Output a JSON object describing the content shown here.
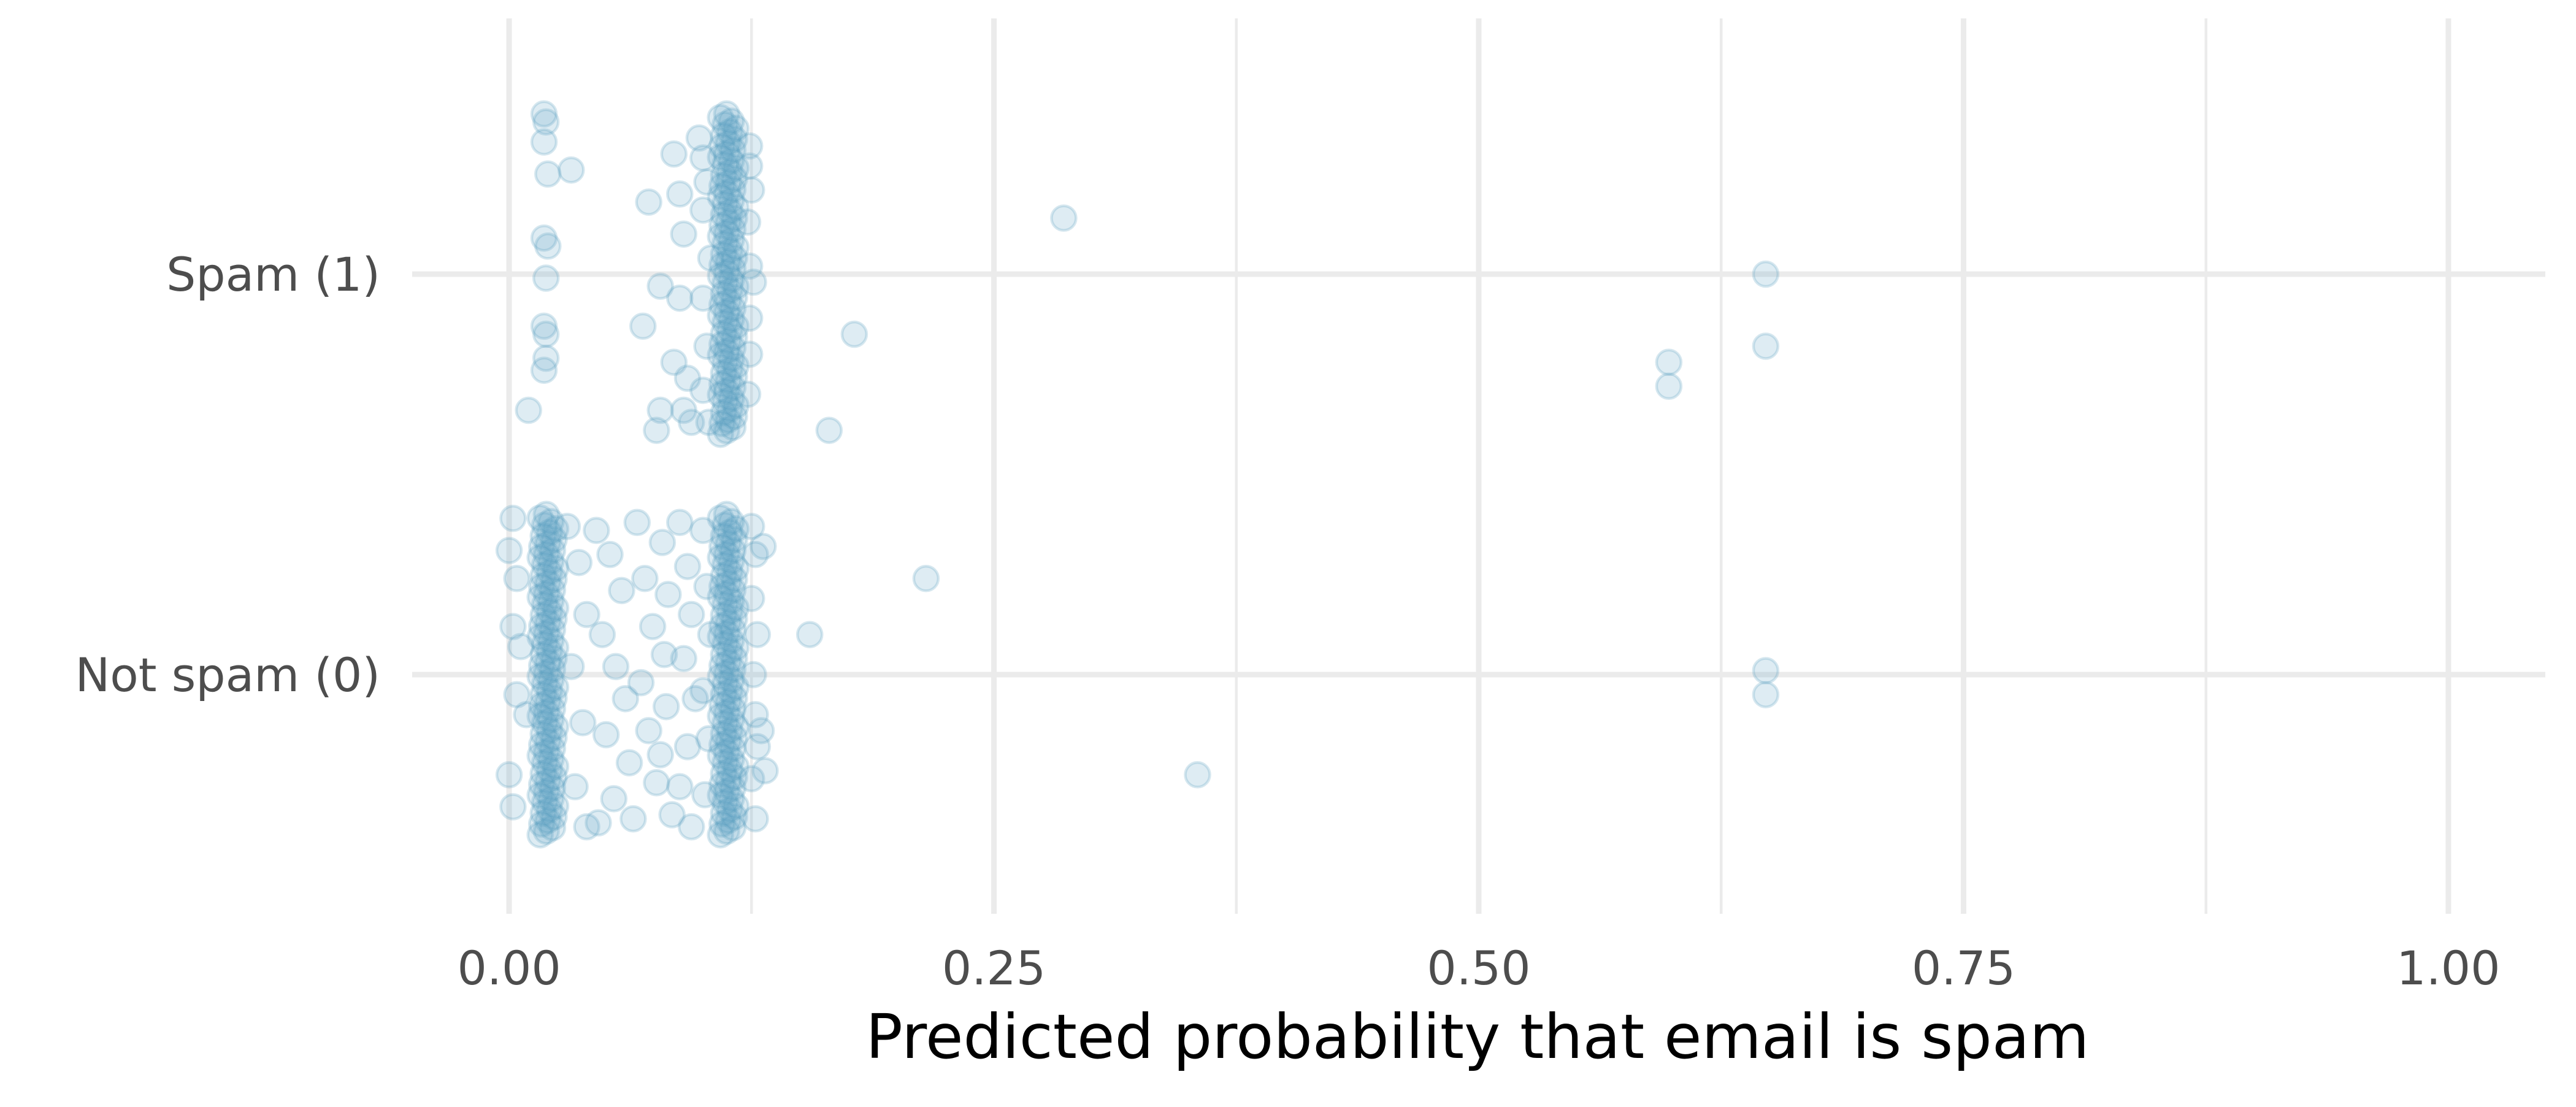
{
  "chart_data": {
    "type": "scatter",
    "title": "",
    "xlabel": "Predicted probability that email is spam",
    "ylabel": "",
    "xlim": [
      -0.05,
      1.05
    ],
    "xticks": [
      0.0,
      0.25,
      0.5,
      0.75,
      1.0
    ],
    "xtick_labels": [
      "0.00",
      "0.25",
      "0.50",
      "0.75",
      "1.00"
    ],
    "y_categories": [
      "Not spam (0)",
      "Spam (1)"
    ],
    "y_category_values": [
      0,
      1
    ],
    "grid": true,
    "point_color": "#5b9fc1",
    "point_alpha": 0.2,
    "jitter": "vertical",
    "series": [
      {
        "category_value": 1,
        "points": [
          [
            0.018,
            1.4
          ],
          [
            0.019,
            1.38
          ],
          [
            0.018,
            1.33
          ],
          [
            0.02,
            1.25
          ],
          [
            0.018,
            1.09
          ],
          [
            0.02,
            1.07
          ],
          [
            0.019,
            0.99
          ],
          [
            0.018,
            0.87
          ],
          [
            0.019,
            0.85
          ],
          [
            0.019,
            0.79
          ],
          [
            0.018,
            0.76
          ],
          [
            0.01,
            0.66
          ],
          [
            0.032,
            1.26
          ],
          [
            0.085,
            1.3
          ],
          [
            0.072,
            1.18
          ],
          [
            0.088,
            1.2
          ],
          [
            0.09,
            1.1
          ],
          [
            0.078,
            0.97
          ],
          [
            0.088,
            0.94
          ],
          [
            0.069,
            0.87
          ],
          [
            0.085,
            0.78
          ],
          [
            0.092,
            0.74
          ],
          [
            0.078,
            0.66
          ],
          [
            0.09,
            0.66
          ],
          [
            0.076,
            0.61
          ],
          [
            0.094,
            0.63
          ],
          [
            0.098,
            1.34
          ],
          [
            0.1,
            1.29
          ],
          [
            0.102,
            1.23
          ],
          [
            0.1,
            1.16
          ],
          [
            0.104,
            1.04
          ],
          [
            0.1,
            0.94
          ],
          [
            0.102,
            0.82
          ],
          [
            0.1,
            0.71
          ],
          [
            0.103,
            0.63
          ],
          [
            0.124,
            1.32
          ],
          [
            0.124,
            1.27
          ],
          [
            0.125,
            1.21
          ],
          [
            0.123,
            1.13
          ],
          [
            0.124,
            1.02
          ],
          [
            0.126,
            0.98
          ],
          [
            0.124,
            0.89
          ],
          [
            0.124,
            0.8
          ],
          [
            0.123,
            0.7
          ],
          [
            0.286,
            1.14
          ],
          [
            0.178,
            0.85
          ],
          [
            0.165,
            0.61
          ],
          [
            0.648,
            1.0
          ],
          [
            0.648,
            0.82
          ],
          [
            0.598,
            0.78
          ],
          [
            0.598,
            0.72
          ]
        ]
      },
      {
        "category_value": 0,
        "points": [
          [
            0.002,
            0.39
          ],
          [
            0.0,
            0.31
          ],
          [
            0.004,
            0.24
          ],
          [
            0.002,
            0.12
          ],
          [
            0.006,
            0.07
          ],
          [
            0.004,
            -0.05
          ],
          [
            0.009,
            -0.1
          ],
          [
            0.0,
            -0.25
          ],
          [
            0.002,
            -0.33
          ],
          [
            0.03,
            0.37
          ],
          [
            0.036,
            0.28
          ],
          [
            0.04,
            0.15
          ],
          [
            0.032,
            0.02
          ],
          [
            0.038,
            -0.12
          ],
          [
            0.034,
            -0.28
          ],
          [
            0.04,
            -0.38
          ],
          [
            0.045,
            0.36
          ],
          [
            0.052,
            0.3
          ],
          [
            0.058,
            0.21
          ],
          [
            0.048,
            0.1
          ],
          [
            0.055,
            0.02
          ],
          [
            0.06,
            -0.06
          ],
          [
            0.05,
            -0.15
          ],
          [
            0.062,
            -0.22
          ],
          [
            0.054,
            -0.31
          ],
          [
            0.046,
            -0.37
          ],
          [
            0.066,
            0.38
          ],
          [
            0.07,
            0.24
          ],
          [
            0.074,
            0.12
          ],
          [
            0.068,
            -0.02
          ],
          [
            0.072,
            -0.14
          ],
          [
            0.076,
            -0.27
          ],
          [
            0.064,
            -0.36
          ],
          [
            0.079,
            0.33
          ],
          [
            0.082,
            0.2
          ],
          [
            0.08,
            0.05
          ],
          [
            0.081,
            -0.08
          ],
          [
            0.078,
            -0.2
          ],
          [
            0.084,
            -0.35
          ],
          [
            0.088,
            0.38
          ],
          [
            0.092,
            0.27
          ],
          [
            0.094,
            0.15
          ],
          [
            0.09,
            0.04
          ],
          [
            0.096,
            -0.06
          ],
          [
            0.092,
            -0.18
          ],
          [
            0.088,
            -0.28
          ],
          [
            0.094,
            -0.38
          ],
          [
            0.1,
            0.36
          ],
          [
            0.102,
            0.22
          ],
          [
            0.104,
            0.1
          ],
          [
            0.1,
            -0.04
          ],
          [
            0.103,
            -0.16
          ],
          [
            0.101,
            -0.3
          ],
          [
            0.125,
            0.37
          ],
          [
            0.127,
            0.3
          ],
          [
            0.125,
            0.19
          ],
          [
            0.128,
            0.1
          ],
          [
            0.126,
            0.0
          ],
          [
            0.127,
            -0.1
          ],
          [
            0.128,
            -0.18
          ],
          [
            0.125,
            -0.26
          ],
          [
            0.127,
            -0.36
          ],
          [
            0.131,
            0.32
          ],
          [
            0.13,
            -0.14
          ],
          [
            0.132,
            -0.24
          ],
          [
            0.215,
            0.24
          ],
          [
            0.155,
            0.1
          ],
          [
            0.355,
            -0.25
          ],
          [
            0.648,
            0.01
          ],
          [
            0.648,
            -0.05
          ]
        ]
      }
    ],
    "dense_columns": [
      {
        "x": 0.02,
        "category_value": 0,
        "y_range": [
          -0.4,
          0.4
        ]
      },
      {
        "x": 0.113,
        "category_value": 0,
        "y_range": [
          -0.4,
          0.4
        ]
      },
      {
        "x": 0.113,
        "category_value": 1,
        "y_range": [
          0.6,
          1.4
        ]
      }
    ]
  }
}
